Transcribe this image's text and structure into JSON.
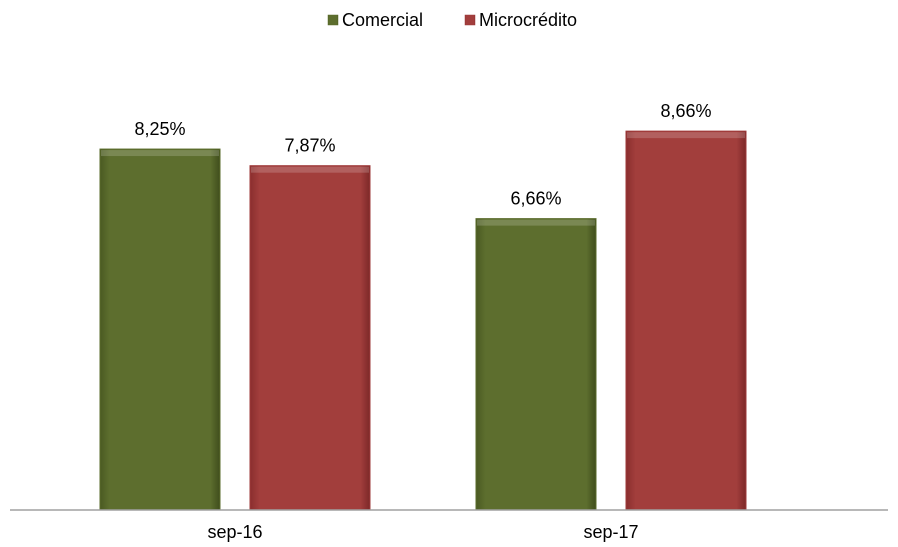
{
  "chart_data": {
    "type": "bar",
    "categories": [
      "sep-16",
      "sep-17"
    ],
    "series": [
      {
        "name": "Comercial",
        "values": [
          8.25,
          6.66
        ],
        "labels": [
          "8,25%",
          "6,66%"
        ],
        "color": "#5a6b2b"
      },
      {
        "name": "Microcrédito",
        "values": [
          7.87,
          8.66
        ],
        "labels": [
          "7,87%",
          "8,66%"
        ],
        "color": "#9e3a3a"
      }
    ],
    "title": "",
    "xlabel": "",
    "ylabel": "",
    "ylim": [
      0,
      10
    ],
    "grid": false,
    "legend": "top-center",
    "axis_color": "#a0a0a0"
  }
}
